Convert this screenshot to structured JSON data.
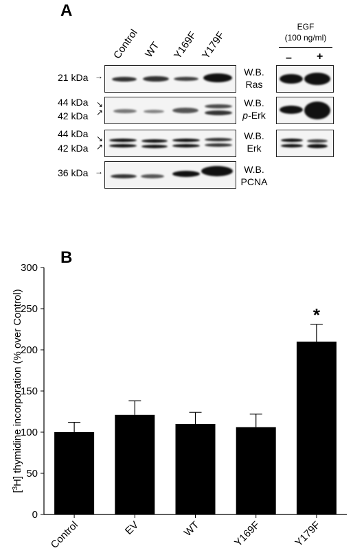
{
  "panel_a": {
    "letter": "A",
    "lanes": [
      "Control",
      "WT",
      "Y169F",
      "Y179F"
    ],
    "egf": {
      "title": "EGF",
      "dose": "(100 ng/ml)",
      "minus": "–",
      "plus": "+"
    },
    "blots": [
      {
        "kda_top": "21 kDa",
        "kda_bottom": "",
        "wb": "W.B.",
        "target": "Ras",
        "target_italic_prefix": ""
      },
      {
        "kda_top": "44 kDa",
        "kda_bottom": "42 kDa",
        "wb": "W.B.",
        "target": "-Erk",
        "target_italic_prefix": "p"
      },
      {
        "kda_top": "44 kDa",
        "kda_bottom": "42 kDa",
        "wb": "W.B.",
        "target": "Erk",
        "target_italic_prefix": ""
      },
      {
        "kda_top": "36 kDa",
        "kda_bottom": "",
        "wb": "W.B.",
        "target": "PCNA",
        "target_italic_prefix": ""
      }
    ]
  },
  "panel_b": {
    "letter": "B"
  },
  "chart_data": {
    "type": "bar",
    "title": "",
    "xlabel": "",
    "ylabel_prefix": "[",
    "ylabel_sup": "3",
    "ylabel_main": "H] thymidine incorporation (% over Control)",
    "categories": [
      "Control",
      "EV",
      "WT",
      "Y169F",
      "Y179F"
    ],
    "values": [
      100,
      121,
      110,
      106,
      210
    ],
    "errors": [
      12,
      17,
      14,
      16,
      21
    ],
    "significance": [
      "",
      "",
      "",
      "",
      "*"
    ],
    "ylim": [
      0,
      300
    ],
    "yticks": [
      0,
      50,
      100,
      150,
      200,
      250,
      300
    ],
    "bar_color": "#000000",
    "grid": false
  }
}
